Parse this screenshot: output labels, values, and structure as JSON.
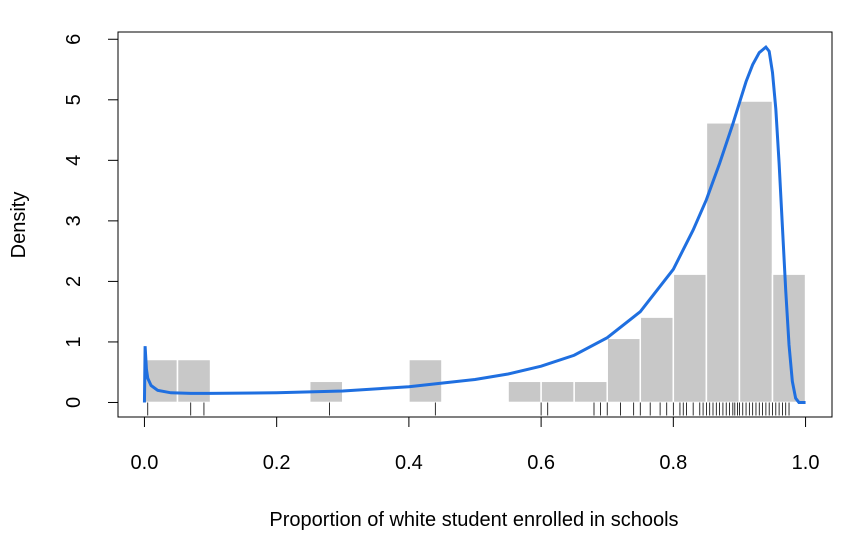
{
  "chart_data": {
    "type": "bar",
    "xlabel": "Proportion of white student enrolled in schools",
    "ylabel": "Density",
    "xlim": [
      -0.04,
      1.04
    ],
    "ylim": [
      -0.24,
      6.12
    ],
    "x_ticks": [
      0.0,
      0.2,
      0.4,
      0.6,
      0.8,
      1.0
    ],
    "x_tick_labels": [
      "0.0",
      "0.2",
      "0.4",
      "0.6",
      "0.8",
      "1.0"
    ],
    "y_ticks": [
      0,
      1,
      2,
      3,
      4,
      5,
      6
    ],
    "y_tick_labels": [
      "0",
      "1",
      "2",
      "3",
      "4",
      "5",
      "6"
    ],
    "histogram": {
      "bin_width": 0.05,
      "bins": [
        {
          "start": 0.0,
          "end": 0.05,
          "density": 0.71
        },
        {
          "start": 0.05,
          "end": 0.1,
          "density": 0.71
        },
        {
          "start": 0.1,
          "end": 0.15,
          "density": 0
        },
        {
          "start": 0.15,
          "end": 0.2,
          "density": 0
        },
        {
          "start": 0.2,
          "end": 0.25,
          "density": 0
        },
        {
          "start": 0.25,
          "end": 0.3,
          "density": 0.35
        },
        {
          "start": 0.3,
          "end": 0.35,
          "density": 0
        },
        {
          "start": 0.35,
          "end": 0.4,
          "density": 0
        },
        {
          "start": 0.4,
          "end": 0.45,
          "density": 0.71
        },
        {
          "start": 0.45,
          "end": 0.5,
          "density": 0
        },
        {
          "start": 0.5,
          "end": 0.55,
          "density": 0
        },
        {
          "start": 0.55,
          "end": 0.6,
          "density": 0.35
        },
        {
          "start": 0.6,
          "end": 0.65,
          "density": 0.35
        },
        {
          "start": 0.65,
          "end": 0.7,
          "density": 0.35
        },
        {
          "start": 0.7,
          "end": 0.75,
          "density": 1.06
        },
        {
          "start": 0.75,
          "end": 0.8,
          "density": 1.41
        },
        {
          "start": 0.8,
          "end": 0.85,
          "density": 2.12
        },
        {
          "start": 0.85,
          "end": 0.9,
          "density": 4.62
        },
        {
          "start": 0.9,
          "end": 0.95,
          "density": 4.98
        },
        {
          "start": 0.95,
          "end": 1.0,
          "density": 2.12
        }
      ],
      "fill_color": "#c8c8c8",
      "border_color": "#ffffff"
    },
    "density_curve": {
      "color": "#1f6fe0",
      "x": [
        0.0,
        0.001,
        0.003,
        0.005,
        0.01,
        0.02,
        0.04,
        0.07,
        0.1,
        0.2,
        0.3,
        0.4,
        0.5,
        0.55,
        0.6,
        0.65,
        0.7,
        0.75,
        0.8,
        0.83,
        0.85,
        0.87,
        0.89,
        0.9,
        0.91,
        0.92,
        0.93,
        0.94,
        0.945,
        0.95,
        0.955,
        0.96,
        0.965,
        0.97,
        0.975,
        0.98,
        0.985,
        0.99,
        1.0
      ],
      "y": [
        0.0,
        0.93,
        0.55,
        0.4,
        0.28,
        0.2,
        0.16,
        0.15,
        0.15,
        0.16,
        0.19,
        0.26,
        0.38,
        0.47,
        0.6,
        0.78,
        1.07,
        1.5,
        2.2,
        2.85,
        3.35,
        3.95,
        4.6,
        4.95,
        5.3,
        5.58,
        5.78,
        5.87,
        5.8,
        5.45,
        4.85,
        3.95,
        2.9,
        1.85,
        0.95,
        0.35,
        0.07,
        0.0,
        0.0
      ]
    },
    "rug": [
      0.6,
      0.61,
      0.68,
      0.69,
      0.7,
      0.72,
      0.74,
      0.75,
      0.765,
      0.78,
      0.79,
      0.8,
      0.81,
      0.815,
      0.82,
      0.83,
      0.84,
      0.845,
      0.85,
      0.855,
      0.86,
      0.865,
      0.87,
      0.875,
      0.88,
      0.885,
      0.89,
      0.893,
      0.897,
      0.9,
      0.905,
      0.91,
      0.915,
      0.92,
      0.925,
      0.93,
      0.935,
      0.94,
      0.945,
      0.95,
      0.955,
      0.96,
      0.965,
      0.97,
      0.975,
      0.005,
      0.07,
      0.09,
      0.28,
      0.44
    ]
  }
}
